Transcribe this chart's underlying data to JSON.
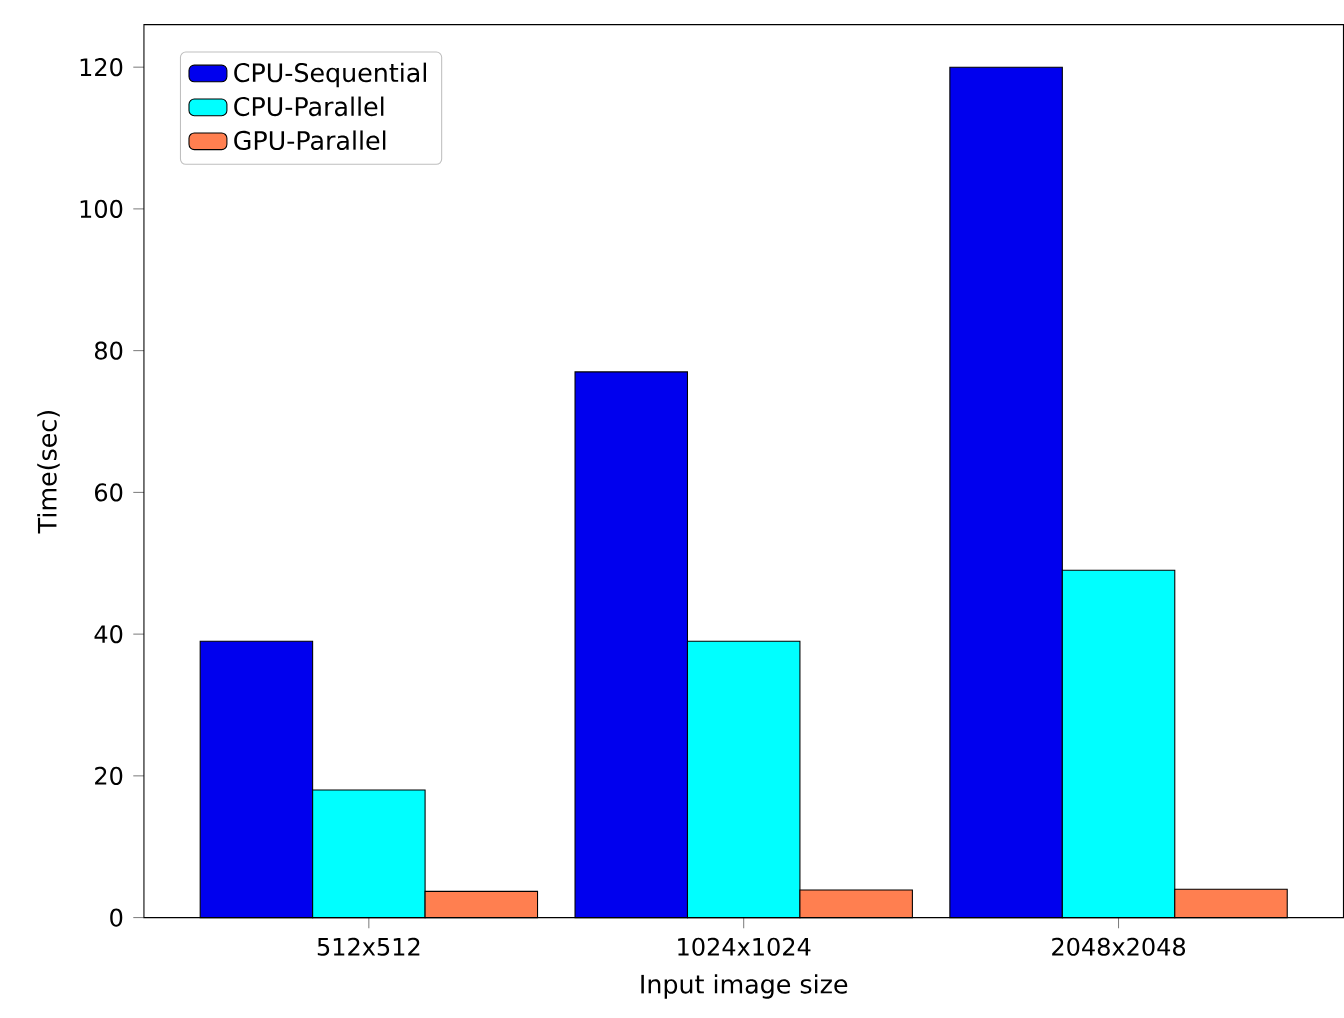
{
  "chart_data": {
    "type": "bar",
    "xlabel": "Input image size",
    "ylabel": "Time(sec)",
    "categories": [
      "512x512",
      "1024x1024",
      "2048x2048"
    ],
    "series": [
      {
        "name": "CPU-Sequential",
        "color": "#0000ee",
        "values": [
          39,
          77,
          120
        ]
      },
      {
        "name": "CPU-Parallel",
        "color": "#00ffff",
        "values": [
          18,
          39,
          49
        ]
      },
      {
        "name": "GPU-Parallel",
        "color": "#ff7f50",
        "values": [
          3.7,
          3.9,
          4
        ]
      }
    ],
    "ylim": [
      0,
      126
    ],
    "yticks": [
      0,
      20,
      40,
      60,
      80,
      100,
      120
    ],
    "legend": "top left"
  }
}
